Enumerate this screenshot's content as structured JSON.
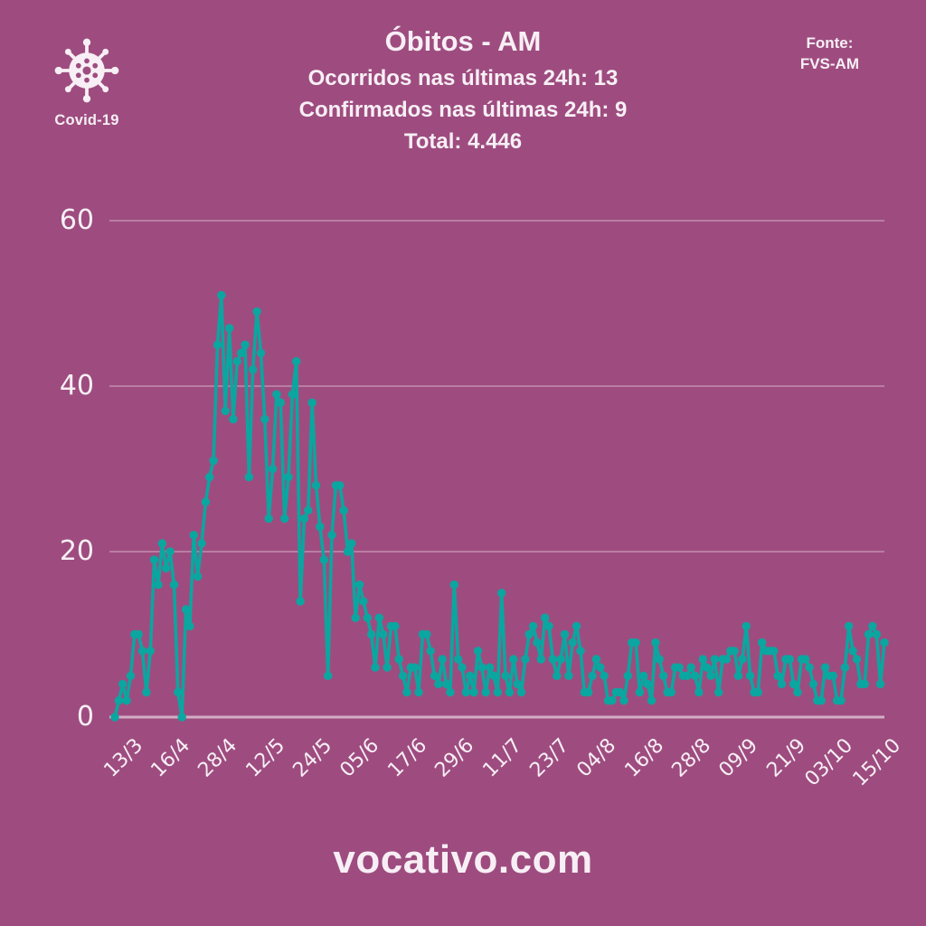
{
  "header": {
    "badge_label": "Covid-19",
    "title": "Óbitos - AM",
    "subtitle_occurred": "Ocorridos nas últimas 24h: 13",
    "subtitle_confirmed": "Confirmados nas últimas 24h: 9",
    "subtitle_total": "Total: 4.446",
    "source_label": "Fonte:",
    "source_value": "FVS-AM"
  },
  "stats": {
    "occurred_last_24h": 13,
    "confirmed_last_24h": 9,
    "total": "4.446"
  },
  "footer": {
    "site": "vocativo.com"
  },
  "colors": {
    "background": "#9E4C7F",
    "line": "#0BA6A0",
    "grid": "rgba(255,255,255,0.28)",
    "axis": "rgba(255,255,255,0.55)",
    "text": "#F7EFF5"
  },
  "chart_data": {
    "type": "line",
    "title": "Óbitos - AM",
    "xlabel": "",
    "ylabel": "",
    "ylim": [
      0,
      60
    ],
    "y_ticks": [
      0,
      20,
      40,
      60
    ],
    "grid": "horizontal",
    "legend": "none",
    "marker": "circle",
    "x_tick_every": 12,
    "x_tick_labels": [
      "13/3",
      "16/4",
      "28/4",
      "12/5",
      "24/5",
      "05/6",
      "17/6",
      "29/6",
      "11/7",
      "23/7",
      "04/8",
      "16/8",
      "28/8",
      "09/9",
      "21/9",
      "03/10",
      "15/10"
    ],
    "values": [
      0,
      2,
      4,
      2,
      5,
      10,
      10,
      8,
      3,
      8,
      19,
      16,
      21,
      18,
      20,
      16,
      3,
      0,
      13,
      11,
      22,
      17,
      21,
      26,
      29,
      31,
      45,
      51,
      37,
      47,
      36,
      43,
      44,
      45,
      29,
      42,
      49,
      44,
      36,
      24,
      30,
      39,
      38,
      24,
      29,
      39,
      43,
      14,
      24,
      25,
      38,
      28,
      23,
      19,
      5,
      22,
      28,
      28,
      25,
      20,
      21,
      12,
      16,
      14,
      12,
      10,
      6,
      12,
      10,
      6,
      11,
      11,
      7,
      5,
      3,
      6,
      6,
      3,
      10,
      10,
      8,
      5,
      4,
      7,
      4,
      3,
      16,
      7,
      6,
      3,
      5,
      3,
      8,
      6,
      3,
      6,
      5,
      3,
      15,
      5,
      3,
      7,
      4,
      3,
      7,
      10,
      11,
      9,
      7,
      12,
      11,
      7,
      5,
      7,
      10,
      5,
      9,
      11,
      8,
      3,
      3,
      5,
      7,
      6,
      5,
      2,
      2,
      3,
      3,
      2,
      5,
      9,
      9,
      3,
      5,
      4,
      2,
      9,
      7,
      5,
      3,
      3,
      6,
      6,
      5,
      5,
      6,
      5,
      3,
      7,
      6,
      5,
      7,
      3,
      7,
      7,
      8,
      8,
      5,
      7,
      11,
      5,
      3,
      3,
      9,
      8,
      8,
      8,
      5,
      4,
      7,
      7,
      4,
      3,
      7,
      7,
      6,
      4,
      2,
      2,
      6,
      5,
      5,
      2,
      2,
      6,
      11,
      8,
      7,
      4,
      4,
      10,
      11,
      10,
      4,
      9
    ]
  }
}
